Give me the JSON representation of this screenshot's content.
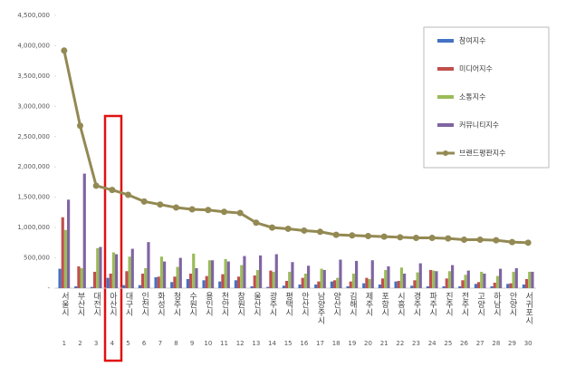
{
  "chart_data": {
    "type": "bar",
    "categories": [
      "서울시",
      "부산시",
      "대전시",
      "아산시",
      "대구시",
      "인천시",
      "화성시",
      "청주시",
      "수원시",
      "용인시",
      "천안시",
      "창원시",
      "울산시",
      "광주시",
      "평택시",
      "안산시",
      "남양주시",
      "양산시",
      "김해시",
      "제주시",
      "포항시",
      "시흥시",
      "경주시",
      "파주시",
      "진주시",
      "전주시",
      "고양시",
      "하남시",
      "안양시",
      "서귀포시"
    ],
    "ranks": [
      1,
      2,
      3,
      4,
      5,
      6,
      7,
      8,
      9,
      10,
      11,
      12,
      13,
      14,
      15,
      16,
      17,
      18,
      19,
      20,
      21,
      22,
      23,
      24,
      25,
      26,
      27,
      28,
      29,
      30
    ],
    "series": [
      {
        "name": "참여지수",
        "type": "bar",
        "color": "#4472c4",
        "values": [
          320000,
          30000,
          20000,
          170000,
          50000,
          50000,
          180000,
          100000,
          150000,
          130000,
          110000,
          130000,
          30000,
          20000,
          40000,
          60000,
          60000,
          110000,
          30000,
          80000,
          60000,
          110000,
          40000,
          30000,
          30000,
          30000,
          70000,
          30000,
          70000,
          60000
        ]
      },
      {
        "name": "미디어지수",
        "type": "bar",
        "color": "#c0504d",
        "values": [
          1170000,
          360000,
          270000,
          240000,
          280000,
          240000,
          190000,
          190000,
          240000,
          200000,
          230000,
          190000,
          210000,
          290000,
          120000,
          170000,
          110000,
          130000,
          110000,
          170000,
          160000,
          120000,
          130000,
          300000,
          160000,
          130000,
          100000,
          90000,
          80000,
          150000
        ]
      },
      {
        "name": "소통지수",
        "type": "bar",
        "color": "#9bbb59",
        "values": [
          960000,
          330000,
          660000,
          590000,
          520000,
          330000,
          520000,
          350000,
          570000,
          460000,
          480000,
          380000,
          300000,
          270000,
          270000,
          240000,
          320000,
          170000,
          240000,
          150000,
          300000,
          340000,
          260000,
          290000,
          280000,
          220000,
          270000,
          200000,
          270000,
          270000
        ]
      },
      {
        "name": "커뮤니티지수",
        "type": "bar",
        "color": "#8064a2",
        "values": [
          1460000,
          1890000,
          680000,
          560000,
          650000,
          760000,
          440000,
          500000,
          330000,
          460000,
          440000,
          530000,
          540000,
          560000,
          430000,
          370000,
          300000,
          470000,
          450000,
          460000,
          360000,
          240000,
          410000,
          280000,
          380000,
          290000,
          240000,
          320000,
          330000,
          270000
        ]
      },
      {
        "name": "브랜드평판지수",
        "type": "line",
        "color": "#938953",
        "values": [
          3920000,
          2680000,
          1690000,
          1620000,
          1540000,
          1430000,
          1380000,
          1330000,
          1300000,
          1290000,
          1260000,
          1240000,
          1080000,
          1000000,
          980000,
          950000,
          930000,
          880000,
          870000,
          860000,
          850000,
          840000,
          830000,
          830000,
          820000,
          800000,
          800000,
          790000,
          760000,
          750000
        ]
      }
    ],
    "ylim": [
      0,
      4500000
    ],
    "yticks": [
      {
        "value": 0,
        "label": "-"
      },
      {
        "value": 500000,
        "label": "500,000"
      },
      {
        "value": 1000000,
        "label": "1,000,000"
      },
      {
        "value": 1500000,
        "label": "1,500,000"
      },
      {
        "value": 2000000,
        "label": "2,000,000"
      },
      {
        "value": 2500000,
        "label": "2,500,000"
      },
      {
        "value": 3000000,
        "label": "3,000,000"
      },
      {
        "value": 3500000,
        "label": "3,500,000"
      },
      {
        "value": 4000000,
        "label": "4,000,000"
      },
      {
        "value": 4500000,
        "label": "4,500,000"
      }
    ]
  }
}
